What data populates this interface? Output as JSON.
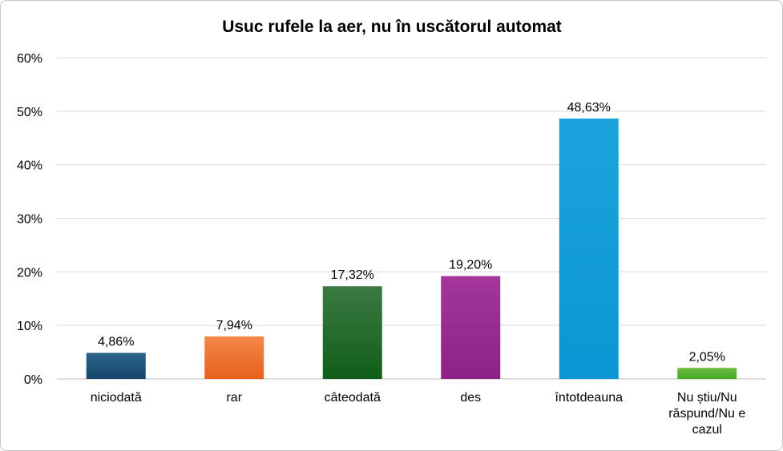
{
  "chart_data": {
    "type": "bar",
    "title": "Usuc rufele la aer, nu în uscătorul automat",
    "xlabel": "",
    "ylabel": "",
    "ylim": [
      0,
      60
    ],
    "yticks": [
      0,
      10,
      20,
      30,
      40,
      50,
      60
    ],
    "yticks_labels": [
      "0%",
      "10%",
      "20%",
      "30%",
      "40%",
      "50%",
      "60%"
    ],
    "grid": true,
    "legend": "none",
    "categories": [
      "niciodată",
      "rar",
      "câteodată",
      "des",
      "întotdeauna",
      "Nu știu/Nu răspund/Nu e cazul"
    ],
    "category_lines": [
      [
        "niciodată"
      ],
      [
        "rar"
      ],
      [
        "câteodată"
      ],
      [
        "des"
      ],
      [
        "întotdeauna"
      ],
      [
        "Nu știu/Nu",
        "răspund/Nu e",
        "cazul"
      ]
    ],
    "values": [
      4.86,
      7.94,
      17.32,
      19.2,
      48.63,
      2.05
    ],
    "value_labels": [
      "4,86%",
      "7,94%",
      "17,32%",
      "19,20%",
      "48,63%",
      "2,05%"
    ],
    "colors": [
      [
        "#2c6488",
        "#15466a"
      ],
      [
        "#f2884a",
        "#e8601d"
      ],
      [
        "#3d7a44",
        "#0f5e18"
      ],
      [
        "#a4379c",
        "#8e2188"
      ],
      [
        "#1ba3dc",
        "#0b96d3"
      ],
      [
        "#6cbc3f",
        "#48a823"
      ]
    ]
  }
}
